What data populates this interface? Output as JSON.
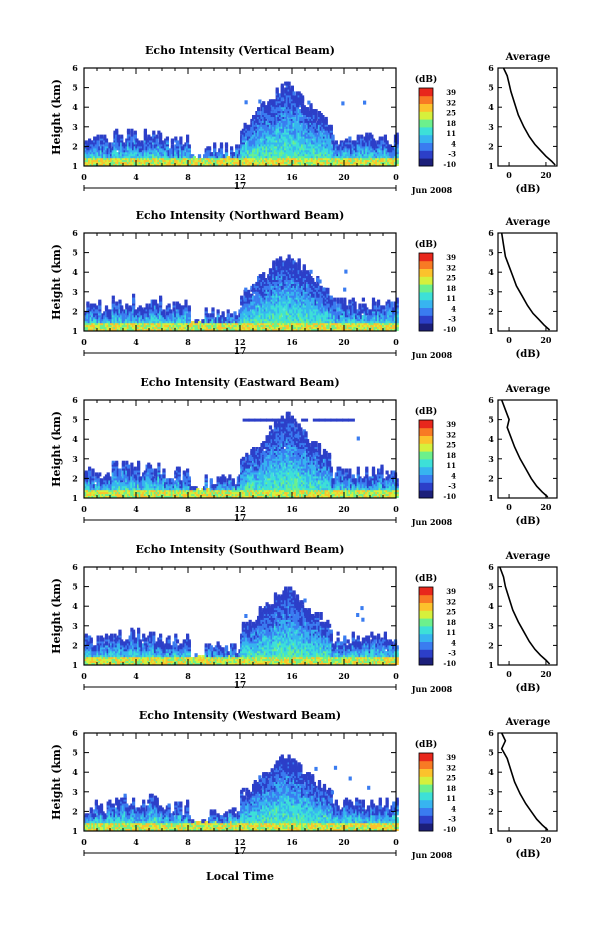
{
  "figure": {
    "date_label": "Jun 2008",
    "day_label": "17",
    "time_label": "Local Time",
    "colorbar_unit": "(dB)",
    "colorbar_ticks": [
      "39",
      "32",
      "25",
      "18",
      "11",
      "4",
      "-3",
      "-10"
    ],
    "colorbar_colors": [
      "#1c1f7a",
      "#2c3fc8",
      "#3a7cf0",
      "#37b4f0",
      "#3de0d8",
      "#6cf08c",
      "#d6f03c",
      "#fcc22c",
      "#f87a24",
      "#e8271c"
    ],
    "avg_title": "Average",
    "avg_xlabel": "(dB)",
    "ylabel": "Height (km)",
    "x_ticks": [
      "0",
      "4",
      "8",
      "12",
      "16",
      "20",
      "0"
    ],
    "y_ticks": [
      "1",
      "2",
      "3",
      "4",
      "5",
      "6"
    ]
  },
  "chart_data": [
    {
      "type": "heatmap",
      "title": "Echo Intensity (Vertical Beam)",
      "ylabel": "Height (km)",
      "xlim": [
        0,
        24
      ],
      "ylim": [
        1,
        6
      ],
      "colorbar": {
        "label": "(dB)",
        "range": [
          -10,
          39
        ]
      },
      "peak_height_km": 4.8,
      "average_profile": {
        "title": "Average",
        "xlabel": "(dB)",
        "xticks": [
          "0",
          "20"
        ],
        "x": [
          -3,
          -1,
          0,
          1,
          3,
          5,
          8,
          11,
          14,
          17,
          20,
          23,
          25
        ],
        "y": [
          6,
          5.6,
          5.2,
          4.8,
          4.2,
          3.6,
          3.0,
          2.5,
          2.1,
          1.8,
          1.5,
          1.25,
          1.05
        ]
      }
    },
    {
      "type": "heatmap",
      "title": "Echo Intensity (Northward Beam)",
      "ylabel": "Height (km)",
      "xlim": [
        0,
        24
      ],
      "ylim": [
        1,
        6
      ],
      "colorbar": {
        "label": "(dB)",
        "range": [
          -10,
          39
        ]
      },
      "peak_height_km": 4.5,
      "average_profile": {
        "title": "Average",
        "xlabel": "(dB)",
        "xticks": [
          "0",
          "20"
        ],
        "x": [
          -4,
          -3,
          -2,
          0,
          2,
          4,
          7,
          10,
          13,
          16,
          19,
          22
        ],
        "y": [
          6,
          5.4,
          4.8,
          4.3,
          3.8,
          3.3,
          2.8,
          2.3,
          1.9,
          1.6,
          1.3,
          1.05
        ]
      }
    },
    {
      "type": "heatmap",
      "title": "Echo Intensity (Eastward Beam)",
      "ylabel": "Height (km)",
      "xlim": [
        0,
        24
      ],
      "ylim": [
        1,
        6
      ],
      "colorbar": {
        "label": "(dB)",
        "range": [
          -10,
          39
        ]
      },
      "peak_height_km": 4.8,
      "average_profile": {
        "title": "Average",
        "xlabel": "(dB)",
        "xticks": [
          "0",
          "20"
        ],
        "x": [
          -4,
          -2,
          0,
          -1,
          1,
          3,
          6,
          9,
          12,
          15,
          18,
          21
        ],
        "y": [
          6,
          5.5,
          5.0,
          4.6,
          4.1,
          3.6,
          3.0,
          2.5,
          2.0,
          1.6,
          1.3,
          1.05
        ]
      }
    },
    {
      "type": "heatmap",
      "title": "Echo Intensity (Southward Beam)",
      "ylabel": "Height (km)",
      "xlim": [
        0,
        24
      ],
      "ylim": [
        1,
        6
      ],
      "colorbar": {
        "label": "(dB)",
        "range": [
          -10,
          39
        ]
      },
      "peak_height_km": 4.5,
      "average_profile": {
        "title": "Average",
        "xlabel": "(dB)",
        "xticks": [
          "0",
          "20"
        ],
        "x": [
          -5,
          -3,
          -2,
          0,
          2,
          5,
          8,
          11,
          14,
          17,
          20,
          22
        ],
        "y": [
          6,
          5.5,
          5.0,
          4.4,
          3.8,
          3.2,
          2.7,
          2.2,
          1.8,
          1.5,
          1.25,
          1.05
        ]
      }
    },
    {
      "type": "heatmap",
      "title": "Echo Intensity (Westward Beam)",
      "ylabel": "Height (km)",
      "xlim": [
        0,
        24
      ],
      "ylim": [
        1,
        6
      ],
      "colorbar": {
        "label": "(dB)",
        "range": [
          -10,
          39
        ]
      },
      "peak_height_km": 4.4,
      "average_profile": {
        "title": "Average",
        "xlabel": "(dB)",
        "xticks": [
          "0",
          "20"
        ],
        "x": [
          -4,
          -2,
          -4,
          -1,
          1,
          3,
          6,
          9,
          12,
          15,
          18,
          21
        ],
        "y": [
          6,
          5.6,
          5.2,
          4.7,
          4.1,
          3.5,
          2.9,
          2.4,
          2.0,
          1.6,
          1.3,
          1.05
        ]
      }
    }
  ]
}
